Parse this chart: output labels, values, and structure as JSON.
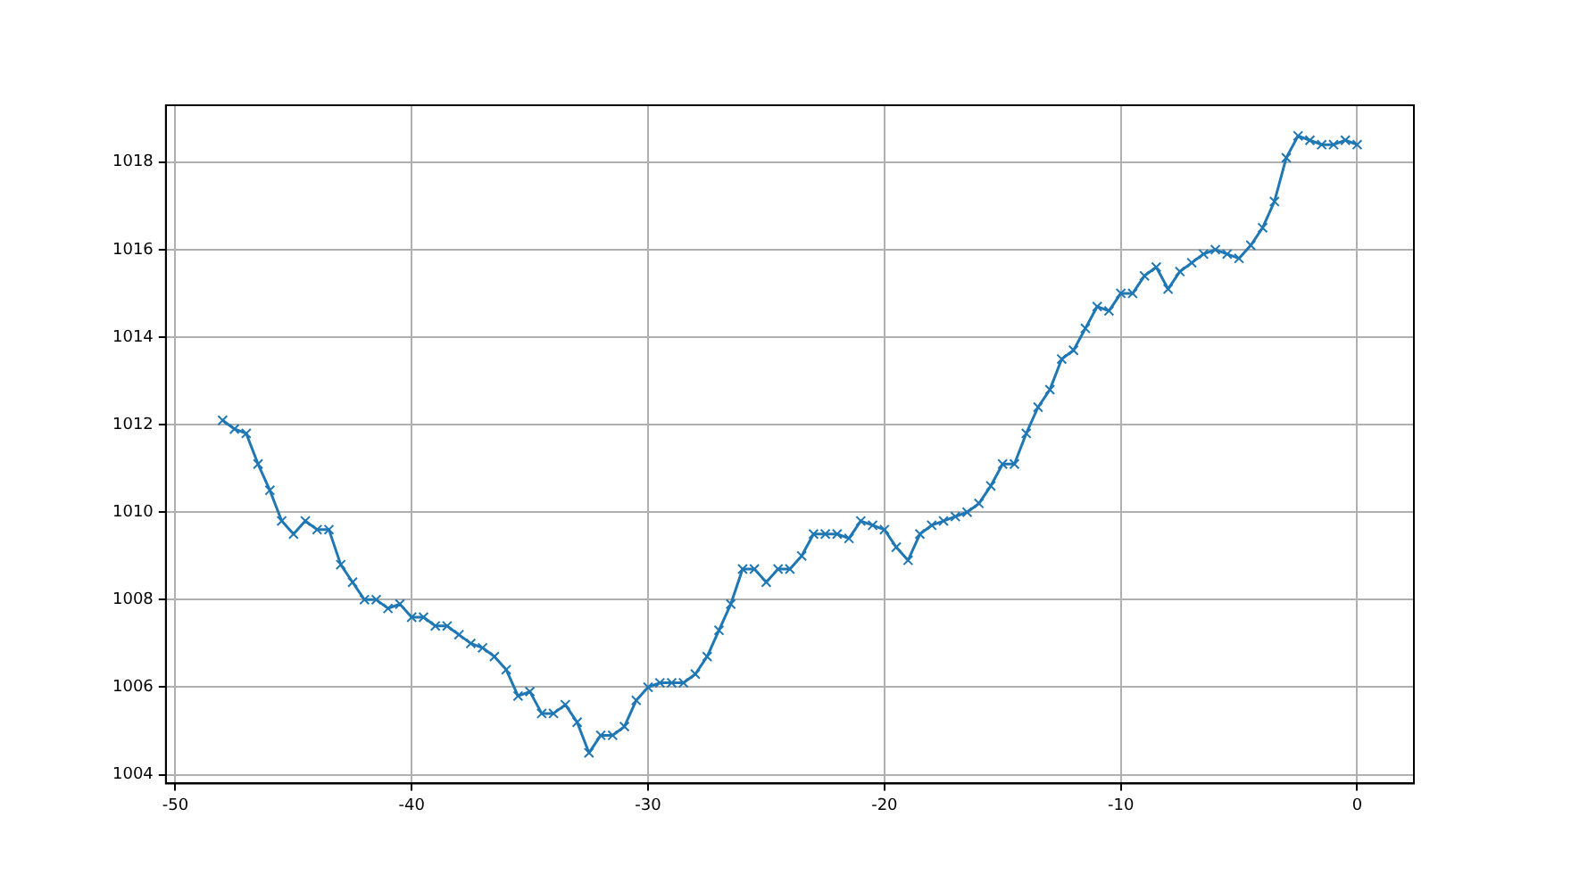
{
  "chart_data": {
    "type": "line",
    "x": [
      -48,
      -47.5,
      -47,
      -46.5,
      -46,
      -45.5,
      -45,
      -44.5,
      -44,
      -43.5,
      -43,
      -42.5,
      -42,
      -41.5,
      -41,
      -40.5,
      -40,
      -39.5,
      -39,
      -38.5,
      -38,
      -37.5,
      -37,
      -36.5,
      -36,
      -35.5,
      -35,
      -34.5,
      -34,
      -33.5,
      -33,
      -32.5,
      -32,
      -31.5,
      -31,
      -30.5,
      -30,
      -29.5,
      -29,
      -28.5,
      -28,
      -27.5,
      -27,
      -26.5,
      -26,
      -25.5,
      -25,
      -24.5,
      -24,
      -23.5,
      -23,
      -22.5,
      -22,
      -21.5,
      -21,
      -20.5,
      -20,
      -19.5,
      -19,
      -18.5,
      -18,
      -17.5,
      -17,
      -16.5,
      -16,
      -15.5,
      -15,
      -14.5,
      -14,
      -13.5,
      -13,
      -12.5,
      -12,
      -11.5,
      -11,
      -10.5,
      -10,
      -9.5,
      -9,
      -8.5,
      -8,
      -7.5,
      -7,
      -6.5,
      -6,
      -5.5,
      -5,
      -4.5,
      -4,
      -3.5,
      -3,
      -2.5,
      -2,
      -1.5,
      -1,
      -0.5,
      0
    ],
    "series": [
      {
        "color": "#1f77b4",
        "values": [
          1012.1,
          1011.9,
          1011.8,
          1011.1,
          1010.5,
          1009.8,
          1009.5,
          1009.8,
          1009.6,
          1009.6,
          1008.8,
          1008.4,
          1008.0,
          1008.0,
          1007.8,
          1007.9,
          1007.6,
          1007.6,
          1007.4,
          1007.4,
          1007.2,
          1007.0,
          1006.9,
          1006.7,
          1006.4,
          1005.8,
          1005.9,
          1005.4,
          1005.4,
          1005.6,
          1005.2,
          1004.5,
          1004.9,
          1004.9,
          1005.1,
          1005.7,
          1006.0,
          1006.1,
          1006.1,
          1006.1,
          1006.3,
          1006.7,
          1007.3,
          1007.9,
          1008.7,
          1008.7,
          1008.4,
          1008.7,
          1008.7,
          1009.0,
          1009.5,
          1009.5,
          1009.5,
          1009.4,
          1009.8,
          1009.7,
          1009.6,
          1009.2,
          1008.9,
          1009.5,
          1009.7,
          1009.8,
          1009.9,
          1010.0,
          1010.2,
          1010.6,
          1011.1,
          1011.1,
          1011.8,
          1012.4,
          1012.8,
          1013.5,
          1013.7,
          1014.2,
          1014.7,
          1014.6,
          1015.0,
          1015.0,
          1015.4,
          1015.6,
          1015.1,
          1015.5,
          1015.7,
          1015.9,
          1016.0,
          1015.9,
          1015.8,
          1016.1,
          1016.5,
          1017.1,
          1018.1,
          1018.6,
          1018.5,
          1018.4,
          1018.4,
          1018.5,
          1018.4
        ]
      }
    ],
    "xlim": [
      -50.4,
      2.4
    ],
    "xticks": [
      -50,
      -40,
      -30,
      -20,
      -10,
      0
    ],
    "ylim": [
      1003.8,
      1019.3
    ],
    "yticks": [
      1004,
      1006,
      1008,
      1010,
      1012,
      1014,
      1016,
      1018
    ],
    "grid": true,
    "marker": "cross",
    "line_style": "solid"
  }
}
